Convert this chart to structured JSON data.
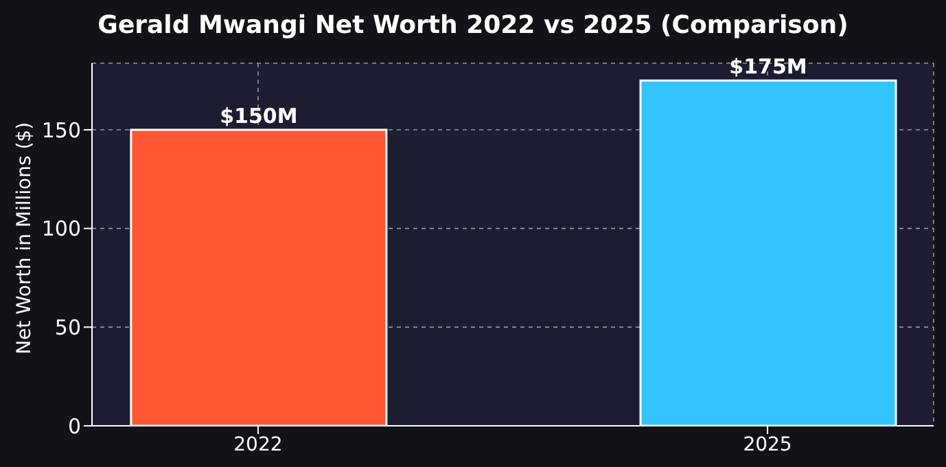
{
  "chart_data": {
    "type": "bar",
    "title": "Gerald Mwangi Net Worth 2022 vs 2025 (Comparison)",
    "ylabel": "Net Worth in Millions ($)",
    "categories": [
      "2022",
      "2025"
    ],
    "values": [
      150,
      175
    ],
    "colors": [
      "#ff5733",
      "#33c4ff"
    ],
    "value_labels": [
      "$150M",
      "$175M"
    ],
    "ylim": [
      0,
      183.75
    ],
    "yticks": [
      0,
      50,
      100,
      150
    ],
    "grid": true
  }
}
